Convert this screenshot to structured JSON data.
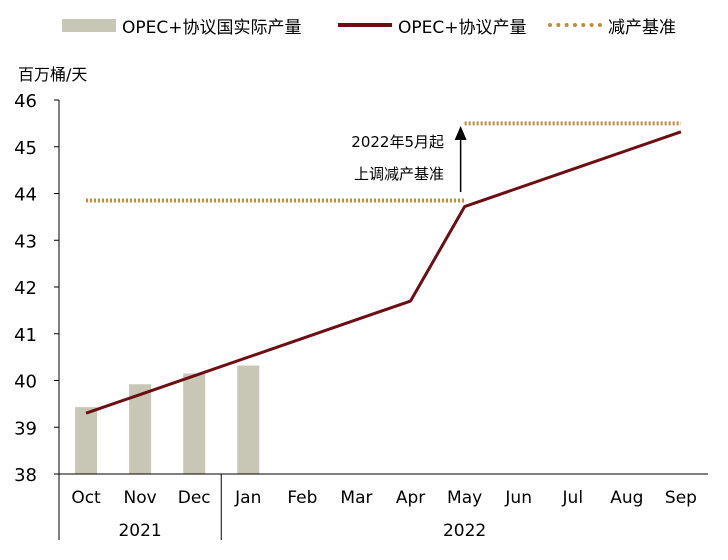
{
  "legend": {
    "bar": "OPEC+协议国实际产量",
    "line": "OPEC+协议产量",
    "dotted": "减产基准"
  },
  "y_unit": "百万桶/天",
  "annotation": {
    "line1": "2022年5月起",
    "line2": "上调减产基准"
  },
  "colors": {
    "bar": "#c8c6b4",
    "line": "#6b0f14",
    "baseline": "#c28a3f",
    "axis": "#000000"
  },
  "chart_data": {
    "type": "bar",
    "categories": [
      "Oct",
      "Nov",
      "Dec",
      "Jan",
      "Feb",
      "Mar",
      "Apr",
      "May",
      "Jun",
      "Jul",
      "Aug",
      "Sep"
    ],
    "year_groups": [
      {
        "label": "2021",
        "from": 0,
        "to": 2
      },
      {
        "label": "2022",
        "from": 3,
        "to": 11
      }
    ],
    "ylim": [
      38,
      46
    ],
    "yticks": [
      38,
      39,
      40,
      41,
      42,
      43,
      44,
      45,
      46
    ],
    "series": [
      {
        "name": "OPEC+协议国实际产量",
        "type": "bar",
        "values": [
          39.43,
          39.92,
          40.15,
          40.32,
          null,
          null,
          null,
          null,
          null,
          null,
          null,
          null
        ]
      },
      {
        "name": "OPEC+协议产量",
        "type": "line",
        "values": [
          39.3,
          39.7,
          40.1,
          40.5,
          40.9,
          41.3,
          41.7,
          43.72,
          44.12,
          44.52,
          44.92,
          45.32
        ]
      },
      {
        "name": "减产基准",
        "type": "dotted",
        "segments": [
          {
            "from": 0,
            "to": 7,
            "value": 43.85
          },
          {
            "from": 7,
            "to": 11,
            "value": 45.5
          }
        ]
      }
    ]
  }
}
